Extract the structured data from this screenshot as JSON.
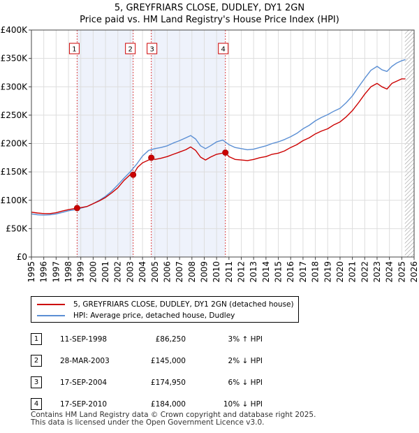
{
  "title_line1": "5, GREYFRIARS CLOSE, DUDLEY, DY1 2GN",
  "title_line2": "Price paid vs. HM Land Registry's House Price Index (HPI)",
  "chart_data": {
    "type": "line",
    "xlim": [
      1995,
      2026
    ],
    "ylim": [
      0,
      400000
    ],
    "ytick_values": [
      0,
      50000,
      100000,
      150000,
      200000,
      250000,
      300000,
      350000,
      400000
    ],
    "ytick_labels": [
      "£0",
      "£50K",
      "£100K",
      "£150K",
      "£200K",
      "£250K",
      "£300K",
      "£350K",
      "£400K"
    ],
    "xtick_labels": [
      "1995",
      "1996",
      "1997",
      "1998",
      "1999",
      "2000",
      "2001",
      "2002",
      "2003",
      "2004",
      "2005",
      "2006",
      "2007",
      "2008",
      "2009",
      "2010",
      "2011",
      "2012",
      "2013",
      "2014",
      "2015",
      "2016",
      "2017",
      "2018",
      "2019",
      "2020",
      "2021",
      "2022",
      "2023",
      "2024",
      "2025",
      "2026"
    ],
    "shaded_ranges": [
      [
        1998.7,
        2003.24
      ],
      [
        2004.71,
        2010.71
      ]
    ],
    "hatched_from": 2025.25,
    "series": [
      {
        "name": "5, GREYFRIARS CLOSE, DUDLEY, DY1 2GN (detached house)",
        "color": "#cc0000",
        "points": [
          [
            1995,
            79000
          ],
          [
            1995.5,
            77500
          ],
          [
            1996,
            76500
          ],
          [
            1996.5,
            76500
          ],
          [
            1997,
            78000
          ],
          [
            1997.5,
            81000
          ],
          [
            1998,
            83500
          ],
          [
            1998.7,
            86250
          ],
          [
            1999,
            87000
          ],
          [
            1999.5,
            89000
          ],
          [
            2000,
            94000
          ],
          [
            2000.5,
            99000
          ],
          [
            2001,
            105000
          ],
          [
            2001.5,
            113000
          ],
          [
            2002,
            122000
          ],
          [
            2002.5,
            135000
          ],
          [
            2003,
            145000
          ],
          [
            2003.24,
            145000
          ],
          [
            2003.6,
            158000
          ],
          [
            2004,
            166000
          ],
          [
            2004.5,
            171000
          ],
          [
            2004.71,
            174950
          ],
          [
            2005,
            172000
          ],
          [
            2005.5,
            174000
          ],
          [
            2006,
            177000
          ],
          [
            2006.5,
            181000
          ],
          [
            2007,
            185000
          ],
          [
            2007.5,
            189000
          ],
          [
            2007.9,
            194000
          ],
          [
            2008.3,
            188000
          ],
          [
            2008.7,
            176000
          ],
          [
            2009.1,
            171000
          ],
          [
            2009.5,
            176000
          ],
          [
            2010,
            181000
          ],
          [
            2010.71,
            184000
          ],
          [
            2011,
            177000
          ],
          [
            2011.5,
            172000
          ],
          [
            2012,
            171000
          ],
          [
            2012.5,
            170000
          ],
          [
            2013,
            172000
          ],
          [
            2013.5,
            175000
          ],
          [
            2014,
            177000
          ],
          [
            2014.5,
            181000
          ],
          [
            2015,
            183000
          ],
          [
            2015.5,
            187000
          ],
          [
            2016,
            193000
          ],
          [
            2016.5,
            198000
          ],
          [
            2017,
            205000
          ],
          [
            2017.5,
            210000
          ],
          [
            2018,
            217000
          ],
          [
            2018.5,
            222000
          ],
          [
            2019,
            226000
          ],
          [
            2019.5,
            233000
          ],
          [
            2020,
            238000
          ],
          [
            2020.5,
            247000
          ],
          [
            2021,
            258000
          ],
          [
            2021.5,
            272000
          ],
          [
            2022,
            287000
          ],
          [
            2022.5,
            300000
          ],
          [
            2023,
            306000
          ],
          [
            2023.4,
            300000
          ],
          [
            2023.8,
            296000
          ],
          [
            2024.2,
            306000
          ],
          [
            2024.6,
            310000
          ],
          [
            2025,
            314000
          ],
          [
            2025.3,
            314000
          ]
        ]
      },
      {
        "name": "HPI: Average price, detached house, Dudley",
        "color": "#5b8fd4",
        "points": [
          [
            1995,
            76000
          ],
          [
            1995.5,
            74500
          ],
          [
            1996,
            74000
          ],
          [
            1996.5,
            74500
          ],
          [
            1997,
            76000
          ],
          [
            1997.5,
            78500
          ],
          [
            1998,
            81500
          ],
          [
            1998.7,
            84000
          ],
          [
            1999,
            86000
          ],
          [
            1999.5,
            89000
          ],
          [
            2000,
            94000
          ],
          [
            2000.5,
            100000
          ],
          [
            2001,
            107000
          ],
          [
            2001.5,
            116000
          ],
          [
            2002,
            127000
          ],
          [
            2002.5,
            139000
          ],
          [
            2003,
            150000
          ],
          [
            2003.5,
            163000
          ],
          [
            2004,
            178000
          ],
          [
            2004.5,
            188000
          ],
          [
            2005,
            191000
          ],
          [
            2005.5,
            193000
          ],
          [
            2006,
            196000
          ],
          [
            2006.5,
            201000
          ],
          [
            2007,
            205000
          ],
          [
            2007.5,
            210000
          ],
          [
            2007.9,
            214000
          ],
          [
            2008.3,
            208000
          ],
          [
            2008.7,
            196000
          ],
          [
            2009.1,
            191000
          ],
          [
            2009.5,
            196000
          ],
          [
            2010,
            203000
          ],
          [
            2010.5,
            206000
          ],
          [
            2011,
            198000
          ],
          [
            2011.5,
            193000
          ],
          [
            2012,
            191000
          ],
          [
            2012.5,
            189000
          ],
          [
            2013,
            190000
          ],
          [
            2013.5,
            193000
          ],
          [
            2014,
            196000
          ],
          [
            2014.5,
            200000
          ],
          [
            2015,
            203000
          ],
          [
            2015.5,
            207000
          ],
          [
            2016,
            212000
          ],
          [
            2016.5,
            218000
          ],
          [
            2017,
            226000
          ],
          [
            2017.5,
            232000
          ],
          [
            2018,
            240000
          ],
          [
            2018.5,
            246000
          ],
          [
            2019,
            251000
          ],
          [
            2019.5,
            257000
          ],
          [
            2020,
            262000
          ],
          [
            2020.5,
            272000
          ],
          [
            2021,
            284000
          ],
          [
            2021.5,
            300000
          ],
          [
            2022,
            315000
          ],
          [
            2022.5,
            329000
          ],
          [
            2023,
            336000
          ],
          [
            2023.4,
            330000
          ],
          [
            2023.8,
            327000
          ],
          [
            2024.2,
            336000
          ],
          [
            2024.6,
            342000
          ],
          [
            2025,
            346000
          ],
          [
            2025.3,
            348000
          ]
        ]
      }
    ],
    "sales": [
      {
        "n": "1",
        "x": 1998.7,
        "price": 86250
      },
      {
        "n": "2",
        "x": 2003.24,
        "price": 145000
      },
      {
        "n": "3",
        "x": 2004.71,
        "price": 174950
      },
      {
        "n": "4",
        "x": 2010.71,
        "price": 184000
      }
    ]
  },
  "legend": {
    "red_label": "5, GREYFRIARS CLOSE, DUDLEY, DY1 2GN (detached house)",
    "blue_label": "HPI: Average price, detached house, Dudley"
  },
  "table": [
    {
      "n": "1",
      "date": "11-SEP-1998",
      "price": "£86,250",
      "hpi": "3% ↑ HPI"
    },
    {
      "n": "2",
      "date": "28-MAR-2003",
      "price": "£145,000",
      "hpi": "2% ↓ HPI"
    },
    {
      "n": "3",
      "date": "17-SEP-2004",
      "price": "£174,950",
      "hpi": "6% ↓ HPI"
    },
    {
      "n": "4",
      "date": "17-SEP-2010",
      "price": "£184,000",
      "hpi": "10% ↓ HPI"
    }
  ],
  "footer_line1": "Contains HM Land Registry data © Crown copyright and database right 2025.",
  "footer_line2": "This data is licensed under the Open Government Licence v3.0."
}
